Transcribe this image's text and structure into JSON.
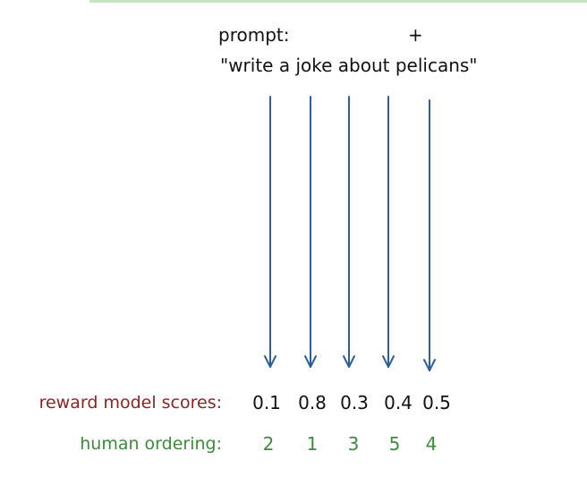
{
  "prompt": {
    "label": "prompt:",
    "plus": "+",
    "text": "\"write a joke about pelicans\""
  },
  "rows": {
    "scores_label": "reward model scores:",
    "order_label": "human ordering:"
  },
  "scores": [
    "0.1",
    "0.8",
    "0.3",
    "0.4",
    "0.5"
  ],
  "ordering": [
    "2",
    "1",
    "3",
    "5",
    "4"
  ],
  "colors": {
    "arrow": "#2f5f9a",
    "scores_label": "#8b2323",
    "ordering": "#3c8a3c"
  }
}
